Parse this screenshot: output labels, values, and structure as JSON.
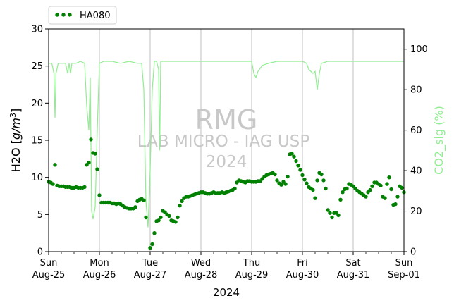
{
  "chart_data": {
    "type": "scatter",
    "title": "",
    "xlabel": "2024",
    "ylabel": "H2O [g/m³]",
    "y2label": "CO2_sig (%)",
    "xlim": [
      "2024-08-25",
      "2024-09-01"
    ],
    "ylim": [
      0,
      30
    ],
    "y2lim": [
      0,
      110
    ],
    "yticks": [
      0,
      5,
      10,
      15,
      20,
      25,
      30
    ],
    "y2ticks": [
      0,
      20,
      40,
      60,
      80,
      100
    ],
    "x_tick_labels": [
      {
        "day": "Sun",
        "date": "Aug-25"
      },
      {
        "day": "Mon",
        "date": "Aug-26"
      },
      {
        "day": "Tue",
        "date": "Aug-27"
      },
      {
        "day": "Wed",
        "date": "Aug-28"
      },
      {
        "day": "Thu",
        "date": "Aug-29"
      },
      {
        "day": "Fri",
        "date": "Aug-30"
      },
      {
        "day": "Sat",
        "date": "Aug-31"
      },
      {
        "day": "Sun",
        "date": "Sep-01"
      }
    ],
    "grid": "vertical",
    "legend": {
      "placement": "top-left",
      "entries": [
        "HA080"
      ]
    },
    "watermark": [
      "RMG",
      "LAB MICRO - IAG USP",
      "2024"
    ],
    "colors": {
      "h2o": "#008000",
      "co2_sig": "#90ee90",
      "grid": "#b0b0b0",
      "watermark": "#c8c8c8",
      "y2label": "#90ee90"
    },
    "series": [
      {
        "name": "HA080",
        "axis": "left",
        "style": "dots",
        "points": [
          [
            "2024-08-25 00:00",
            9.4
          ],
          [
            "2024-08-25 01:00",
            9.3
          ],
          [
            "2024-08-25 02:00",
            9.1
          ],
          [
            "2024-08-25 03:00",
            11.7
          ],
          [
            "2024-08-25 04:00",
            8.9
          ],
          [
            "2024-08-25 05:00",
            8.8
          ],
          [
            "2024-08-25 06:00",
            8.8
          ],
          [
            "2024-08-25 07:00",
            8.8
          ],
          [
            "2024-08-25 08:00",
            8.7
          ],
          [
            "2024-08-25 09:00",
            8.7
          ],
          [
            "2024-08-25 10:00",
            8.7
          ],
          [
            "2024-08-25 11:00",
            8.6
          ],
          [
            "2024-08-25 12:00",
            8.6
          ],
          [
            "2024-08-25 13:00",
            8.7
          ],
          [
            "2024-08-25 14:00",
            8.6
          ],
          [
            "2024-08-25 15:00",
            8.6
          ],
          [
            "2024-08-25 16:00",
            8.6
          ],
          [
            "2024-08-25 17:00",
            8.7
          ],
          [
            "2024-08-25 18:00",
            11.7
          ],
          [
            "2024-08-25 19:00",
            12.0
          ],
          [
            "2024-08-25 20:00",
            15.1
          ],
          [
            "2024-08-25 21:00",
            13.3
          ],
          [
            "2024-08-25 22:00",
            13.2
          ],
          [
            "2024-08-25 23:00",
            11.1
          ],
          [
            "2024-08-26 00:00",
            7.6
          ],
          [
            "2024-08-26 01:00",
            6.6
          ],
          [
            "2024-08-26 02:00",
            6.6
          ],
          [
            "2024-08-26 03:00",
            6.6
          ],
          [
            "2024-08-26 04:00",
            6.6
          ],
          [
            "2024-08-26 05:00",
            6.6
          ],
          [
            "2024-08-26 06:00",
            6.5
          ],
          [
            "2024-08-26 07:00",
            6.5
          ],
          [
            "2024-08-26 08:00",
            6.4
          ],
          [
            "2024-08-26 09:00",
            6.5
          ],
          [
            "2024-08-26 10:00",
            6.4
          ],
          [
            "2024-08-26 11:00",
            6.2
          ],
          [
            "2024-08-26 12:00",
            6.0
          ],
          [
            "2024-08-26 13:00",
            5.9
          ],
          [
            "2024-08-26 14:00",
            5.8
          ],
          [
            "2024-08-26 15:00",
            5.8
          ],
          [
            "2024-08-26 16:00",
            5.8
          ],
          [
            "2024-08-26 17:00",
            6.0
          ],
          [
            "2024-08-26 18:00",
            6.8
          ],
          [
            "2024-08-26 19:00",
            7.0
          ],
          [
            "2024-08-26 20:00",
            7.1
          ],
          [
            "2024-08-26 21:00",
            6.9
          ],
          [
            "2024-08-26 22:00",
            4.6
          ],
          [
            "2024-08-27 00:00",
            0.5
          ],
          [
            "2024-08-27 01:00",
            1.0
          ],
          [
            "2024-08-27 02:00",
            2.5
          ],
          [
            "2024-08-27 03:00",
            4.1
          ],
          [
            "2024-08-27 04:00",
            4.2
          ],
          [
            "2024-08-27 05:00",
            4.6
          ],
          [
            "2024-08-27 06:00",
            5.5
          ],
          [
            "2024-08-27 07:00",
            5.3
          ],
          [
            "2024-08-27 08:00",
            5.0
          ],
          [
            "2024-08-27 09:00",
            4.8
          ],
          [
            "2024-08-27 10:00",
            4.2
          ],
          [
            "2024-08-27 11:00",
            4.1
          ],
          [
            "2024-08-27 12:00",
            4.0
          ],
          [
            "2024-08-27 13:00",
            4.6
          ],
          [
            "2024-08-27 14:00",
            6.2
          ],
          [
            "2024-08-27 15:00",
            6.8
          ],
          [
            "2024-08-27 16:00",
            7.2
          ],
          [
            "2024-08-27 17:00",
            7.4
          ],
          [
            "2024-08-27 18:00",
            7.4
          ],
          [
            "2024-08-27 19:00",
            7.5
          ],
          [
            "2024-08-27 20:00",
            7.6
          ],
          [
            "2024-08-27 21:00",
            7.7
          ],
          [
            "2024-08-27 22:00",
            7.8
          ],
          [
            "2024-08-27 23:00",
            7.9
          ],
          [
            "2024-08-28 00:00",
            8.0
          ],
          [
            "2024-08-28 01:00",
            8.0
          ],
          [
            "2024-08-28 02:00",
            7.9
          ],
          [
            "2024-08-28 03:00",
            7.8
          ],
          [
            "2024-08-28 04:00",
            7.8
          ],
          [
            "2024-08-28 05:00",
            7.9
          ],
          [
            "2024-08-28 06:00",
            8.0
          ],
          [
            "2024-08-28 07:00",
            7.9
          ],
          [
            "2024-08-28 08:00",
            7.9
          ],
          [
            "2024-08-28 09:00",
            7.9
          ],
          [
            "2024-08-28 10:00",
            8.0
          ],
          [
            "2024-08-28 11:00",
            7.9
          ],
          [
            "2024-08-28 12:00",
            8.0
          ],
          [
            "2024-08-28 13:00",
            8.1
          ],
          [
            "2024-08-28 14:00",
            8.2
          ],
          [
            "2024-08-28 15:00",
            8.3
          ],
          [
            "2024-08-28 16:00",
            8.5
          ],
          [
            "2024-08-28 17:00",
            9.3
          ],
          [
            "2024-08-28 18:00",
            9.6
          ],
          [
            "2024-08-28 19:00",
            9.5
          ],
          [
            "2024-08-28 20:00",
            9.4
          ],
          [
            "2024-08-28 21:00",
            9.3
          ],
          [
            "2024-08-28 22:00",
            9.5
          ],
          [
            "2024-08-28 23:00",
            9.5
          ],
          [
            "2024-08-29 00:00",
            9.4
          ],
          [
            "2024-08-29 01:00",
            9.4
          ],
          [
            "2024-08-29 02:00",
            9.4
          ],
          [
            "2024-08-29 03:00",
            9.5
          ],
          [
            "2024-08-29 04:00",
            9.5
          ],
          [
            "2024-08-29 05:00",
            9.8
          ],
          [
            "2024-08-29 06:00",
            10.1
          ],
          [
            "2024-08-29 07:00",
            10.3
          ],
          [
            "2024-08-29 08:00",
            10.4
          ],
          [
            "2024-08-29 09:00",
            10.5
          ],
          [
            "2024-08-29 10:00",
            10.6
          ],
          [
            "2024-08-29 11:00",
            10.4
          ],
          [
            "2024-08-29 12:00",
            9.6
          ],
          [
            "2024-08-29 13:00",
            9.2
          ],
          [
            "2024-08-29 14:00",
            9.0
          ],
          [
            "2024-08-29 15:00",
            9.4
          ],
          [
            "2024-08-29 16:00",
            9.1
          ],
          [
            "2024-08-29 17:00",
            10.1
          ],
          [
            "2024-08-29 18:00",
            13.1
          ],
          [
            "2024-08-29 19:00",
            13.2
          ],
          [
            "2024-08-29 20:00",
            12.8
          ],
          [
            "2024-08-29 21:00",
            12.2
          ],
          [
            "2024-08-29 22:00",
            11.6
          ],
          [
            "2024-08-29 23:00",
            11.0
          ],
          [
            "2024-08-30 00:00",
            10.3
          ],
          [
            "2024-08-30 01:00",
            9.7
          ],
          [
            "2024-08-30 02:00",
            9.2
          ],
          [
            "2024-08-30 03:00",
            8.7
          ],
          [
            "2024-08-30 04:00",
            8.5
          ],
          [
            "2024-08-30 05:00",
            8.3
          ],
          [
            "2024-08-30 06:00",
            7.2
          ],
          [
            "2024-08-30 07:00",
            9.6
          ],
          [
            "2024-08-30 08:00",
            10.6
          ],
          [
            "2024-08-30 09:00",
            10.4
          ],
          [
            "2024-08-30 10:00",
            9.6
          ],
          [
            "2024-08-30 11:00",
            8.5
          ],
          [
            "2024-08-30 12:00",
            5.6
          ],
          [
            "2024-08-30 13:00",
            5.2
          ],
          [
            "2024-08-30 14:00",
            4.6
          ],
          [
            "2024-08-30 15:00",
            5.2
          ],
          [
            "2024-08-30 16:00",
            5.2
          ],
          [
            "2024-08-30 17:00",
            4.9
          ],
          [
            "2024-08-30 18:00",
            7.0
          ],
          [
            "2024-08-30 19:00",
            8.0
          ],
          [
            "2024-08-30 20:00",
            8.4
          ],
          [
            "2024-08-30 21:00",
            8.5
          ],
          [
            "2024-08-30 22:00",
            9.1
          ],
          [
            "2024-08-30 23:00",
            9.0
          ],
          [
            "2024-08-31 00:00",
            8.8
          ],
          [
            "2024-08-31 01:00",
            8.5
          ],
          [
            "2024-08-31 02:00",
            8.2
          ],
          [
            "2024-08-31 03:00",
            8.0
          ],
          [
            "2024-08-31 04:00",
            7.8
          ],
          [
            "2024-08-31 05:00",
            7.6
          ],
          [
            "2024-08-31 06:00",
            7.4
          ],
          [
            "2024-08-31 07:00",
            8.0
          ],
          [
            "2024-08-31 08:00",
            8.3
          ],
          [
            "2024-08-31 09:00",
            8.8
          ],
          [
            "2024-08-31 10:00",
            9.3
          ],
          [
            "2024-08-31 11:00",
            9.3
          ],
          [
            "2024-08-31 12:00",
            9.1
          ],
          [
            "2024-08-31 13:00",
            8.9
          ],
          [
            "2024-08-31 14:00",
            7.4
          ],
          [
            "2024-08-31 15:00",
            7.2
          ],
          [
            "2024-08-31 16:00",
            9.1
          ],
          [
            "2024-08-31 17:00",
            10.0
          ],
          [
            "2024-08-31 18:00",
            8.4
          ],
          [
            "2024-08-31 19:00",
            6.3
          ],
          [
            "2024-08-31 20:00",
            6.4
          ],
          [
            "2024-08-31 21:00",
            7.4
          ],
          [
            "2024-08-31 22:00",
            8.8
          ],
          [
            "2024-08-31 23:00",
            8.6
          ],
          [
            "2024-09-01 00:00",
            8.0
          ]
        ]
      },
      {
        "name": "CO2_sig (%)",
        "axis": "right",
        "style": "line",
        "points": [
          [
            "2024-08-25 00:00",
            93
          ],
          [
            "2024-08-25 01:30",
            93
          ],
          [
            "2024-08-25 02:30",
            88
          ],
          [
            "2024-08-25 03:00",
            66
          ],
          [
            "2024-08-25 03:30",
            88
          ],
          [
            "2024-08-25 04:30",
            93
          ],
          [
            "2024-08-25 08:00",
            93
          ],
          [
            "2024-08-25 09:00",
            88
          ],
          [
            "2024-08-25 09:40",
            93
          ],
          [
            "2024-08-25 10:20",
            88
          ],
          [
            "2024-08-25 11:00",
            93
          ],
          [
            "2024-08-25 13:00",
            93
          ],
          [
            "2024-08-25 15:00",
            94
          ],
          [
            "2024-08-25 17:00",
            93
          ],
          [
            "2024-08-25 18:00",
            72
          ],
          [
            "2024-08-25 19:00",
            60
          ],
          [
            "2024-08-25 19:40",
            86
          ],
          [
            "2024-08-25 20:20",
            20
          ],
          [
            "2024-08-25 21:00",
            16
          ],
          [
            "2024-08-25 22:00",
            22
          ],
          [
            "2024-08-25 23:00",
            60
          ],
          [
            "2024-08-26 00:00",
            93
          ],
          [
            "2024-08-26 02:00",
            94
          ],
          [
            "2024-08-26 06:00",
            94
          ],
          [
            "2024-08-26 10:00",
            93
          ],
          [
            "2024-08-26 14:00",
            94
          ],
          [
            "2024-08-26 18:00",
            93
          ],
          [
            "2024-08-26 20:00",
            93
          ],
          [
            "2024-08-26 21:00",
            80
          ],
          [
            "2024-08-26 22:00",
            25
          ],
          [
            "2024-08-26 23:00",
            12
          ],
          [
            "2024-08-27 00:00",
            40
          ],
          [
            "2024-08-27 01:00",
            80
          ],
          [
            "2024-08-27 02:00",
            94
          ],
          [
            "2024-08-27 03:00",
            94
          ],
          [
            "2024-08-27 04:00",
            90
          ],
          [
            "2024-08-27 04:30",
            50
          ],
          [
            "2024-08-27 05:00",
            94
          ],
          [
            "2024-08-27 08:00",
            94
          ],
          [
            "2024-08-27 16:00",
            94
          ],
          [
            "2024-08-28 00:00",
            94
          ],
          [
            "2024-08-28 12:00",
            94
          ],
          [
            "2024-08-28 20:00",
            94
          ],
          [
            "2024-08-29 00:00",
            94
          ],
          [
            "2024-08-29 01:00",
            88
          ],
          [
            "2024-08-29 02:00",
            86
          ],
          [
            "2024-08-29 03:00",
            89
          ],
          [
            "2024-08-29 05:00",
            92
          ],
          [
            "2024-08-29 08:00",
            93
          ],
          [
            "2024-08-29 12:00",
            94
          ],
          [
            "2024-08-29 18:00",
            94
          ],
          [
            "2024-08-30 00:00",
            94
          ],
          [
            "2024-08-30 02:00",
            93
          ],
          [
            "2024-08-30 03:00",
            90
          ],
          [
            "2024-08-30 04:00",
            89
          ],
          [
            "2024-08-30 05:00",
            88
          ],
          [
            "2024-08-30 06:00",
            89
          ],
          [
            "2024-08-30 07:00",
            80
          ],
          [
            "2024-08-30 08:00",
            88
          ],
          [
            "2024-08-30 09:00",
            93
          ],
          [
            "2024-08-30 12:00",
            94
          ],
          [
            "2024-08-31 00:00",
            94
          ],
          [
            "2024-08-31 12:00",
            94
          ],
          [
            "2024-09-01 00:00",
            94
          ]
        ]
      }
    ]
  }
}
